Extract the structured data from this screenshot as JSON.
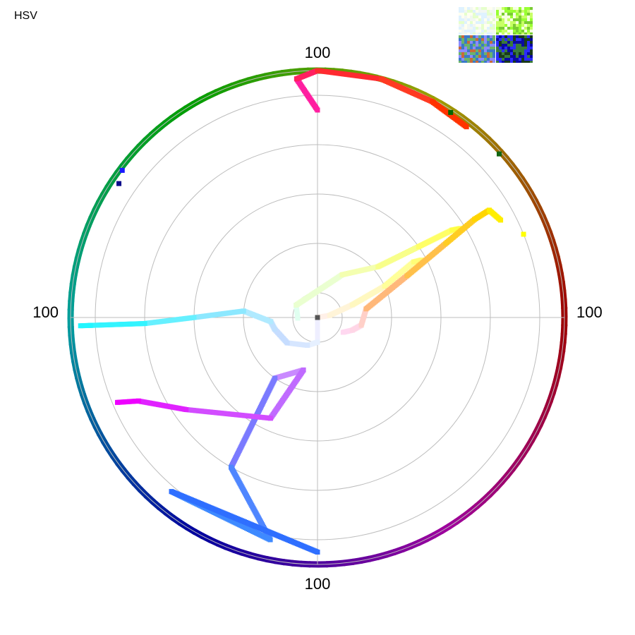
{
  "header": {
    "mode_label": "HSV"
  },
  "thumbnails": [
    {
      "name": "thumb-top-left",
      "colors": [
        "#f2f7f2",
        "#e6ffcc",
        "#dff2ff",
        "#fffff0"
      ]
    },
    {
      "name": "thumb-top-right",
      "colors": [
        "#c8ff66",
        "#99ff33",
        "#f5ffe0",
        "#7acc33"
      ]
    },
    {
      "name": "thumb-bottom-left",
      "colors": [
        "#3a7ac8",
        "#6bb36b",
        "#c86a3a",
        "#8a8aff"
      ]
    },
    {
      "name": "thumb-bottom-right",
      "colors": [
        "#1a3a1a",
        "#2b2bff",
        "#3a7a3a",
        "#0a0aa0"
      ]
    }
  ],
  "chart_data": {
    "type": "scatter",
    "coordinate_system": "polar",
    "angle_axis": "hue (degrees)",
    "radius_axis": "saturation",
    "r_range": [
      0,
      100
    ],
    "axis_labels": {
      "top": "100",
      "right": "100",
      "bottom": "100",
      "left": "100"
    },
    "rings": [
      10,
      30,
      50,
      70,
      90
    ],
    "grid": true,
    "center_point": {
      "h": 0,
      "s": 0,
      "color": "#555555"
    },
    "rim": {
      "s": 100,
      "v_hint": "darkened hue wheel"
    },
    "series": [
      {
        "points": [
          [
            0,
            0
          ],
          [
            270,
            10
          ],
          [
            250,
            12
          ],
          [
            220,
            16
          ],
          [
            195,
            18
          ],
          [
            185,
            19
          ],
          [
            175,
            30
          ],
          [
            180,
            50
          ],
          [
            182,
            70
          ],
          [
            182,
            92
          ],
          [
            182,
            96
          ]
        ],
        "colors": [
          "#ffffff",
          "#eeeeff",
          "#e6f0ff",
          "#d6e6ff",
          "#c6ddff",
          "#bfe0ff",
          "#b0eaff",
          "#8ce8ff",
          "#66f0ff",
          "#33f4ff",
          "#22f6ff"
        ]
      },
      {
        "points": [
          [
            182,
            8
          ],
          [
            150,
            10
          ],
          [
            60,
            20
          ],
          [
            40,
            32
          ],
          [
            35,
            50
          ],
          [
            33,
            65
          ],
          [
            32,
            68
          ]
        ],
        "colors": [
          "#ecfff4",
          "#e0fff0",
          "#eaffd0",
          "#f4ffb0",
          "#f8ff8a",
          "#ffff66",
          "#ffff44"
        ]
      },
      {
        "points": [
          [
            0,
            0
          ],
          [
            10,
            5
          ],
          [
            20,
            15
          ],
          [
            25,
            30
          ],
          [
            30,
            45
          ],
          [
            29,
            48
          ]
        ],
        "colors": [
          "#fff6f6",
          "#fff0e8",
          "#fff4d8",
          "#fff8c0",
          "#ffff99",
          "#ffff77"
        ]
      },
      {
        "points": [
          [
            330,
            12
          ],
          [
            340,
            15
          ],
          [
            350,
            18
          ],
          [
            10,
            20
          ],
          [
            25,
            40
          ],
          [
            30,
            60
          ],
          [
            32,
            75
          ],
          [
            32,
            82
          ],
          [
            28,
            84
          ]
        ],
        "colors": [
          "#ffe0ff",
          "#ffd8f0",
          "#ffd6e6",
          "#ffd0c8",
          "#ffb87a",
          "#ffc04a",
          "#ffcc22",
          "#ffd500",
          "#ffee00"
        ]
      },
      {
        "points": [
          [
            255,
            22
          ],
          [
            235,
            30
          ],
          [
            240,
            70
          ],
          [
            258,
            92
          ],
          [
            230,
            92
          ],
          [
            270,
            95
          ]
        ],
        "colors": [
          "#e6d4ff",
          "#c98aff",
          "#7a7aff",
          "#4f86ff",
          "#3f8aff",
          "#2f6fff"
        ]
      },
      {
        "points": [
          [
            255,
            22
          ],
          [
            245,
            45
          ],
          [
            215,
            65
          ],
          [
            205,
            80
          ],
          [
            203,
            88
          ]
        ],
        "colors": [
          "#e0c0ff",
          "#c06bff",
          "#d24dff",
          "#e022ff",
          "#ee00ff"
        ]
      },
      {
        "points": [
          [
            90,
            84
          ],
          [
            95,
            97
          ],
          [
            90,
            100
          ],
          [
            75,
            100
          ],
          [
            62,
            99
          ],
          [
            52,
            98
          ]
        ],
        "colors": [
          "#ff1a8a",
          "#ff1ea0",
          "#ff2060",
          "#ff2a30",
          "#ff3a22",
          "#ff3300"
        ]
      }
    ],
    "markers": [
      {
        "h": 22,
        "s": 90,
        "color": "#ffff00"
      },
      {
        "h": 146,
        "s": 97,
        "color": "#0a0a8a"
      },
      {
        "h": 143,
        "s": 99,
        "color": "#1a1aff"
      },
      {
        "h": 57,
        "s": 99,
        "color": "#006600"
      },
      {
        "h": 42,
        "s": 99,
        "color": "#116611"
      }
    ]
  }
}
